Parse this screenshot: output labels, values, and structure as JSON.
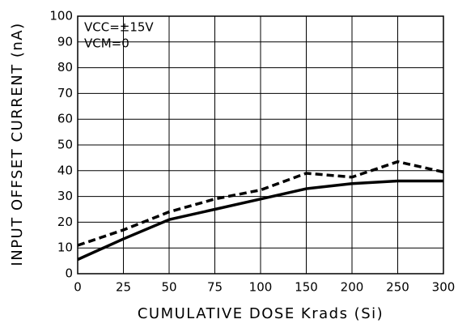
{
  "chart_data": {
    "type": "line",
    "xlabel": "CUMULATIVE DOSE Krads (Si)",
    "ylabel": "INPUT OFFSET CURRENT (nA)",
    "annotations": [
      "VCC=±15V",
      "VCM=0"
    ],
    "categories": [
      "0",
      "25",
      "50",
      "75",
      "100",
      "150",
      "200",
      "250",
      "300"
    ],
    "series": [
      {
        "color": "#000000",
        "dash": "solid",
        "values": [
          5.5,
          13.5,
          21,
          25,
          29,
          33,
          35,
          36,
          36
        ]
      },
      {
        "color": "#000000",
        "dash": "dashed",
        "values": [
          11,
          17,
          24,
          29,
          32.5,
          39,
          37.5,
          43.5,
          39.5
        ]
      }
    ],
    "ylim": [
      0,
      100
    ],
    "yticks": [
      0,
      10,
      20,
      30,
      40,
      50,
      60,
      70,
      80,
      90,
      100
    ],
    "grid": true
  }
}
